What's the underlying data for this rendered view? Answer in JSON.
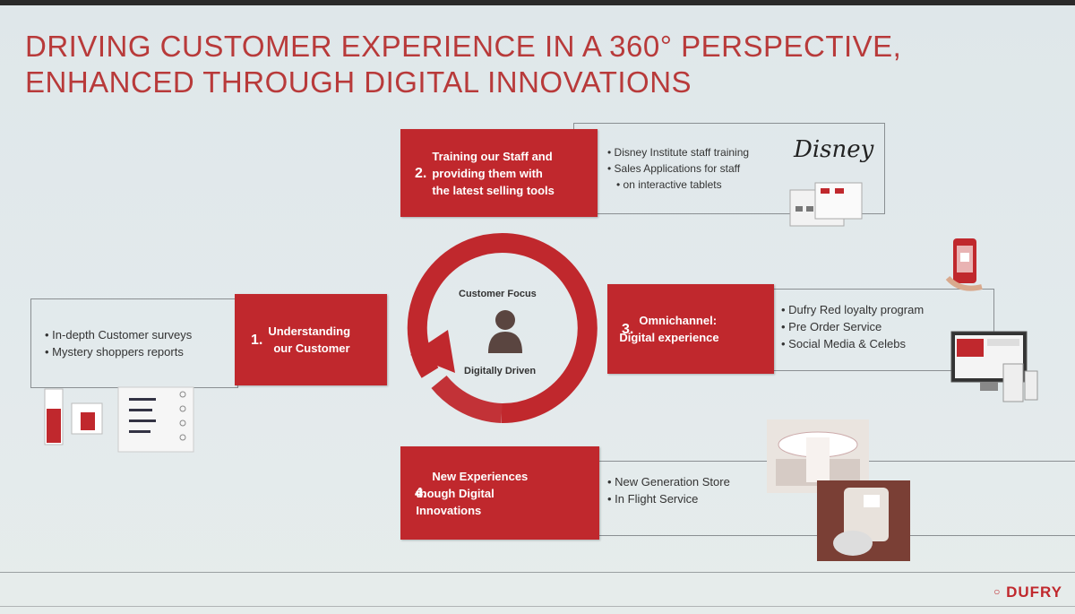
{
  "title": {
    "line1": "DRIVING CUSTOMER EXPERIENCE IN A 360° PERSPECTIVE,",
    "line2": "ENHANCED THROUGH DIGITAL INNOVATIONS"
  },
  "center": {
    "top_label": "Customer Focus",
    "bottom_label": "Digitally Driven"
  },
  "pillars": [
    {
      "num": "1.",
      "label_l1": "Understanding",
      "label_l2": "our Customer",
      "bullets": [
        "In-depth Customer surveys",
        "Mystery shoppers reports"
      ]
    },
    {
      "num": "2.",
      "label_l1": "Training our Staff and",
      "label_l2": "providing them with",
      "label_l3": "the latest selling tools",
      "bullets": [
        "Disney Institute staff training",
        "Sales Applications for staff",
        "on interactive tablets"
      ]
    },
    {
      "num": "3.",
      "label_l1": "Omnichannel:",
      "label_l2": "Digital experience",
      "bullets": [
        "Dufry Red loyalty program",
        "Pre Order Service",
        "Social Media & Celebs"
      ]
    },
    {
      "num": "4.",
      "label_l1": "New Experiences",
      "label_l2": "though Digital",
      "label_l3": "Innovations",
      "bullets": [
        "New Generation Store",
        "In Flight Service"
      ]
    }
  ],
  "disney_logo_text": "Disney",
  "brand": "DUFRY",
  "colors": {
    "accent": "#c0282d",
    "title": "#b83a3a"
  }
}
